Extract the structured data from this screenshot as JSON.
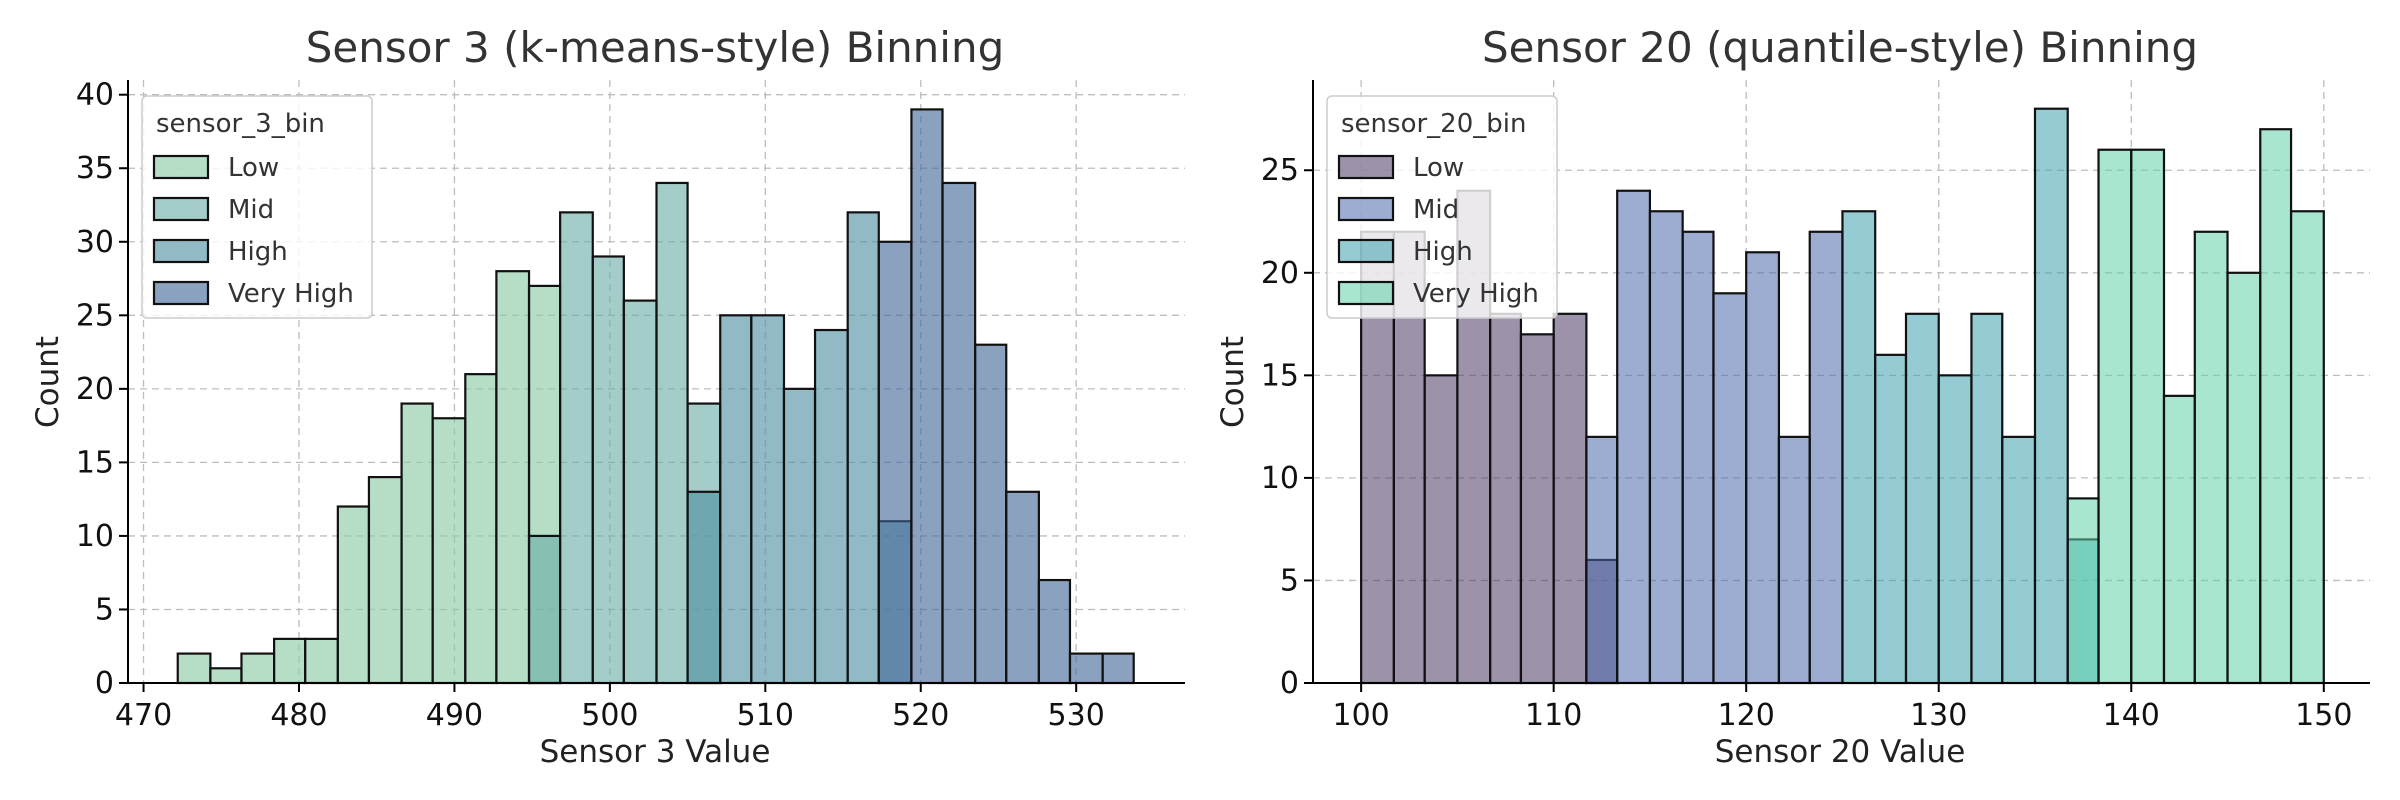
{
  "chart_data": [
    {
      "type": "bar",
      "title": "Sensor 3 (k-means-style) Binning",
      "xlabel": "Sensor 3 Value",
      "ylabel": "Count",
      "xlim": [
        469,
        537
      ],
      "ylim": [
        0,
        41
      ],
      "xticks": [
        470,
        480,
        490,
        500,
        510,
        520,
        530
      ],
      "yticks": [
        0,
        5,
        10,
        15,
        20,
        25,
        30,
        35,
        40
      ],
      "grid": true,
      "legend": {
        "title": "sensor_3_bin",
        "position": "top-left",
        "entries": [
          "Low",
          "Mid",
          "High",
          "Very High"
        ]
      },
      "series": [
        {
          "name": "Low",
          "color": "#8fcba8",
          "alpha": 0.65
        },
        {
          "name": "Mid",
          "color": "#68aba5",
          "alpha": 0.6
        },
        {
          "name": "High",
          "color": "#4f8fa3",
          "alpha": 0.62
        },
        {
          "name": "Very High",
          "color": "#44689a",
          "alpha": 0.62
        }
      ],
      "bins": [
        {
          "x0": 472.2,
          "x1": 474.3,
          "counts": {
            "Low": 2
          }
        },
        {
          "x0": 474.3,
          "x1": 476.3,
          "counts": {
            "Low": 1
          }
        },
        {
          "x0": 476.3,
          "x1": 478.4,
          "counts": {
            "Low": 2
          }
        },
        {
          "x0": 478.4,
          "x1": 480.4,
          "counts": {
            "Low": 3
          }
        },
        {
          "x0": 480.4,
          "x1": 482.5,
          "counts": {
            "Low": 3
          }
        },
        {
          "x0": 482.5,
          "x1": 484.5,
          "counts": {
            "Low": 12
          }
        },
        {
          "x0": 484.5,
          "x1": 486.6,
          "counts": {
            "Low": 14
          }
        },
        {
          "x0": 486.6,
          "x1": 488.6,
          "counts": {
            "Low": 19
          }
        },
        {
          "x0": 488.6,
          "x1": 490.7,
          "counts": {
            "Low": 18
          }
        },
        {
          "x0": 490.7,
          "x1": 492.7,
          "counts": {
            "Low": 21
          }
        },
        {
          "x0": 492.7,
          "x1": 494.8,
          "counts": {
            "Low": 28
          }
        },
        {
          "x0": 494.8,
          "x1": 496.8,
          "counts": {
            "Low": 27,
            "Mid": 10
          }
        },
        {
          "x0": 496.8,
          "x1": 498.9,
          "counts": {
            "Mid": 32
          }
        },
        {
          "x0": 498.9,
          "x1": 500.9,
          "counts": {
            "Mid": 29
          }
        },
        {
          "x0": 500.9,
          "x1": 503.0,
          "counts": {
            "Mid": 26
          }
        },
        {
          "x0": 503.0,
          "x1": 505.0,
          "counts": {
            "Mid": 34
          }
        },
        {
          "x0": 505.0,
          "x1": 507.1,
          "counts": {
            "Mid": 19,
            "High": 13
          }
        },
        {
          "x0": 507.1,
          "x1": 509.1,
          "counts": {
            "High": 25
          }
        },
        {
          "x0": 509.1,
          "x1": 511.2,
          "counts": {
            "High": 25
          }
        },
        {
          "x0": 511.2,
          "x1": 513.2,
          "counts": {
            "High": 20
          }
        },
        {
          "x0": 513.2,
          "x1": 515.3,
          "counts": {
            "High": 24
          }
        },
        {
          "x0": 515.3,
          "x1": 517.3,
          "counts": {
            "High": 32
          }
        },
        {
          "x0": 517.3,
          "x1": 519.4,
          "counts": {
            "High": 11,
            "Very High": 30
          }
        },
        {
          "x0": 519.4,
          "x1": 521.4,
          "counts": {
            "Very High": 39
          }
        },
        {
          "x0": 521.4,
          "x1": 523.5,
          "counts": {
            "Very High": 34
          }
        },
        {
          "x0": 523.5,
          "x1": 525.5,
          "counts": {
            "Very High": 23
          }
        },
        {
          "x0": 525.5,
          "x1": 527.6,
          "counts": {
            "Very High": 13
          }
        },
        {
          "x0": 527.6,
          "x1": 529.6,
          "counts": {
            "Very High": 7
          }
        },
        {
          "x0": 529.6,
          "x1": 531.7,
          "counts": {
            "Very High": 2
          }
        },
        {
          "x0": 531.7,
          "x1": 533.7,
          "counts": {
            "Very High": 2
          }
        }
      ]
    },
    {
      "type": "bar",
      "title": "Sensor 20 (quantile-style) Binning",
      "xlabel": "Sensor 20 Value",
      "ylabel": "Count",
      "xlim": [
        97.5,
        152.4
      ],
      "ylim": [
        0,
        29.4
      ],
      "xticks": [
        100,
        110,
        120,
        130,
        140,
        150
      ],
      "yticks": [
        0,
        5,
        10,
        15,
        20,
        25
      ],
      "grid": true,
      "legend": {
        "title": "sensor_20_bin",
        "position": "top-left",
        "entries": [
          "Low",
          "Mid",
          "High",
          "Very High"
        ]
      },
      "series": [
        {
          "name": "Low",
          "color": "#4a3a66",
          "alpha": 0.55
        },
        {
          "name": "Mid",
          "color": "#4d6aac",
          "alpha": 0.55
        },
        {
          "name": "High",
          "color": "#3ea3ae",
          "alpha": 0.55
        },
        {
          "name": "Very High",
          "color": "#61d2aa",
          "alpha": 0.55
        }
      ],
      "bins": [
        {
          "x0": 100.0,
          "x1": 101.7,
          "counts": {
            "Low": 22
          }
        },
        {
          "x0": 101.7,
          "x1": 103.3,
          "counts": {
            "Low": 22
          }
        },
        {
          "x0": 103.3,
          "x1": 105.0,
          "counts": {
            "Low": 15
          }
        },
        {
          "x0": 105.0,
          "x1": 106.7,
          "counts": {
            "Low": 24
          }
        },
        {
          "x0": 106.7,
          "x1": 108.3,
          "counts": {
            "Low": 18
          }
        },
        {
          "x0": 108.3,
          "x1": 110.0,
          "counts": {
            "Low": 17
          }
        },
        {
          "x0": 110.0,
          "x1": 111.7,
          "counts": {
            "Low": 18
          }
        },
        {
          "x0": 111.7,
          "x1": 113.3,
          "counts": {
            "Low": 6,
            "Mid": 12
          }
        },
        {
          "x0": 113.3,
          "x1": 115.0,
          "counts": {
            "Mid": 24
          }
        },
        {
          "x0": 115.0,
          "x1": 116.7,
          "counts": {
            "Mid": 23
          }
        },
        {
          "x0": 116.7,
          "x1": 118.3,
          "counts": {
            "Mid": 22
          }
        },
        {
          "x0": 118.3,
          "x1": 120.0,
          "counts": {
            "Mid": 19
          }
        },
        {
          "x0": 120.0,
          "x1": 121.7,
          "counts": {
            "Mid": 21
          }
        },
        {
          "x0": 121.7,
          "x1": 123.3,
          "counts": {
            "Mid": 12
          }
        },
        {
          "x0": 123.3,
          "x1": 125.0,
          "counts": {
            "Mid": 22
          }
        },
        {
          "x0": 125.0,
          "x1": 126.7,
          "counts": {
            "High": 23
          }
        },
        {
          "x0": 126.7,
          "x1": 128.3,
          "counts": {
            "High": 16
          }
        },
        {
          "x0": 128.3,
          "x1": 130.0,
          "counts": {
            "High": 18
          }
        },
        {
          "x0": 130.0,
          "x1": 131.7,
          "counts": {
            "High": 15
          }
        },
        {
          "x0": 131.7,
          "x1": 133.3,
          "counts": {
            "High": 18
          }
        },
        {
          "x0": 133.3,
          "x1": 135.0,
          "counts": {
            "High": 12
          }
        },
        {
          "x0": 135.0,
          "x1": 136.7,
          "counts": {
            "High": 28
          }
        },
        {
          "x0": 136.7,
          "x1": 138.3,
          "counts": {
            "High": 7,
            "Very High": 9
          }
        },
        {
          "x0": 138.3,
          "x1": 140.0,
          "counts": {
            "Very High": 26
          }
        },
        {
          "x0": 140.0,
          "x1": 141.7,
          "counts": {
            "Very High": 26
          }
        },
        {
          "x0": 141.7,
          "x1": 143.3,
          "counts": {
            "Very High": 14
          }
        },
        {
          "x0": 143.3,
          "x1": 145.0,
          "counts": {
            "Very High": 22
          }
        },
        {
          "x0": 145.0,
          "x1": 146.7,
          "counts": {
            "Very High": 20
          }
        },
        {
          "x0": 146.7,
          "x1": 148.3,
          "counts": {
            "Very High": 27
          }
        },
        {
          "x0": 148.3,
          "x1": 150.0,
          "counts": {
            "Very High": 23
          }
        }
      ]
    }
  ]
}
